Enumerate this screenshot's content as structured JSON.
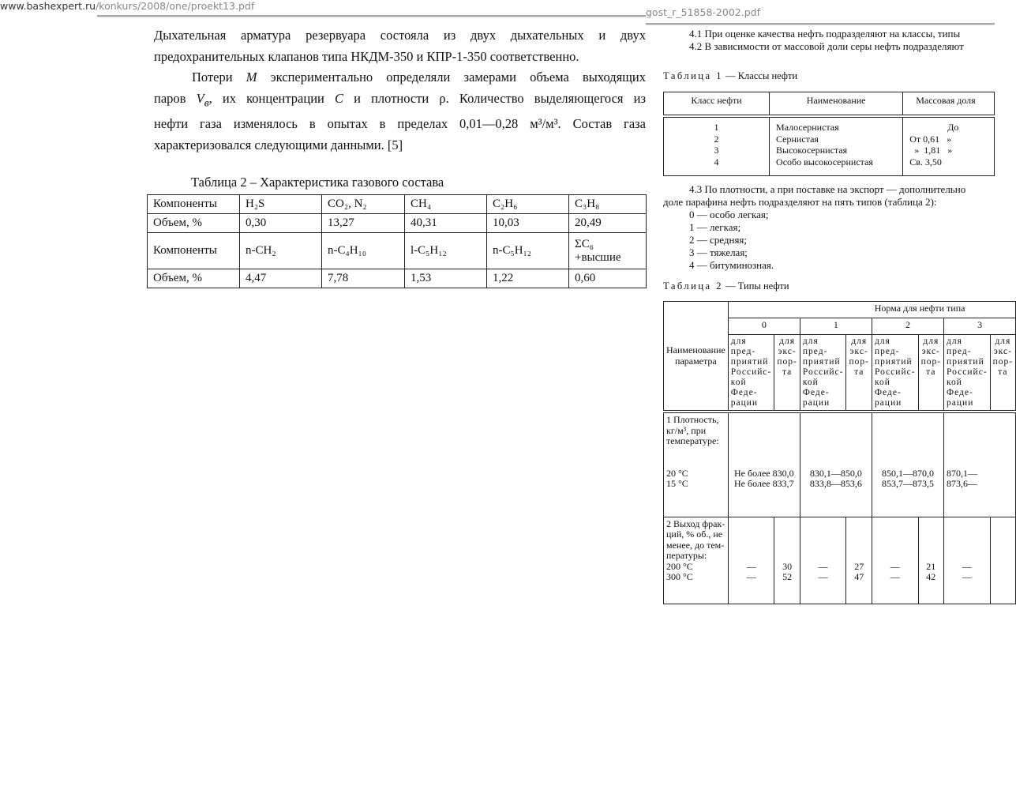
{
  "left_doc": {
    "url_host": "www.bashexpert.ru",
    "url_path": "/konkurs/2008/one/proekt13.pdf",
    "lines": {
      "l1": "Дыхательная арматура резервуара состояла из двух дыхательных и двух",
      "l2": "предохранительных клапанов типа НКДМ-350 и КПР-1-350 соответственно.",
      "l3a": "Потери ",
      "l3m": "M",
      "l3b": " экспериментально определяли замерами объема выходящих",
      "l4a": "паров ",
      "l4v": "V",
      "l4sub": "в",
      "l4b": ", их концентрации ",
      "l4c": "C",
      "l4d": " и плотности ρ. Количество выделяющегося из",
      "l5": "нефти газа изменялось в опытах в пределах 0,01—0,28 м³/м³. Состав газа",
      "l6": "характеризовался следующими данными. [5]"
    },
    "table_caption": "Таблица 2 – Характеристика газового состава",
    "table_rows": [
      [
        "Компоненты",
        "H₂S",
        "CO₂, N₂",
        "CH₄",
        "C₂H₆",
        "C₃H₈"
      ],
      [
        "Объем, %",
        "0,30",
        "13,27",
        "40,31",
        "10,03",
        "20,49"
      ],
      [
        "Компоненты",
        "n-CH₂",
        "n-C₄H₁₀",
        "l-C₅H₁₂",
        "n-C₅H₁₂",
        "ΣC₆\n+высшие"
      ],
      [
        "Объем, %",
        "4,47",
        "7,78",
        "1,53",
        "1,22",
        "0,60"
      ]
    ]
  },
  "right_doc": {
    "filename": "gost_r_51858-2002.pdf",
    "p41": "4.1 При оценке качества нефть подразделяют на классы, типы",
    "p42": "4.2 В зависимости от массовой доли серы нефть подразделяют",
    "table1_caption_label": "Таблица 1",
    "table1_caption_text": " — Классы нефти",
    "table1_headers": [
      "Класс нефти",
      "Наименование",
      "Массовая доля"
    ],
    "table1_col1": "1\n2\n3\n4",
    "table1_col2": "Малосернистая\nСернистая\nВысокосернистая\nОсобо  высокосернистая",
    "table1_col3": "                До\nОт 0,61   »\n  »  1,81   »\nСв. 3,50",
    "p43_1": "4.3 По плотности, а при поставке на экспорт — дополнительно",
    "p43_2": "доле парафина нефть подразделяют на пять типов (таблица 2):",
    "types": [
      "0 — особо легкая;",
      "1 — легкая;",
      "2 — средняя;",
      "3 — тяжелая;",
      "4 — битуминозная."
    ],
    "table2_caption_label": "Таблица 2",
    "table2_caption_text": " — Типы нефти",
    "table2": {
      "param_header": "Наименование\nпараметра",
      "norm_header": "Норма для нефти типа",
      "type_headers": [
        "0",
        "1",
        "2",
        "3"
      ],
      "sub_domestic": "для пред-\nприятий\nРоссийс-\nкой Феде-\nрации",
      "sub_export": "для\nэкс-\nпор-\nта",
      "row1_label": "1  Плотность,\nкг/м³, при\nтемпературе:\n\n\n   20 °C\n   15 °C",
      "row1_values": [
        "\n\n\n\n\nНе более 830,0\nНе более 833,7",
        "\n\n\n\n\n830,1—850,0\n833,8—853,6",
        "\n\n\n\n\n850,1—870,0\n853,7—873,5",
        "\n\n\n\n\n870,1—\n873,6—"
      ],
      "row2_label": "2  Выход фрак-\nций, % об., не\nменее, до тем-\nпературы:\n   200 °C\n   300 °C",
      "row2_values": [
        "\n\n\n\n—\n—",
        "\n\n\n\n30\n52",
        "\n\n\n\n—\n—",
        "\n\n\n\n27\n47",
        "\n\n\n\n—\n—",
        "\n\n\n\n21\n42",
        "\n\n\n\n—\n—"
      ]
    }
  }
}
